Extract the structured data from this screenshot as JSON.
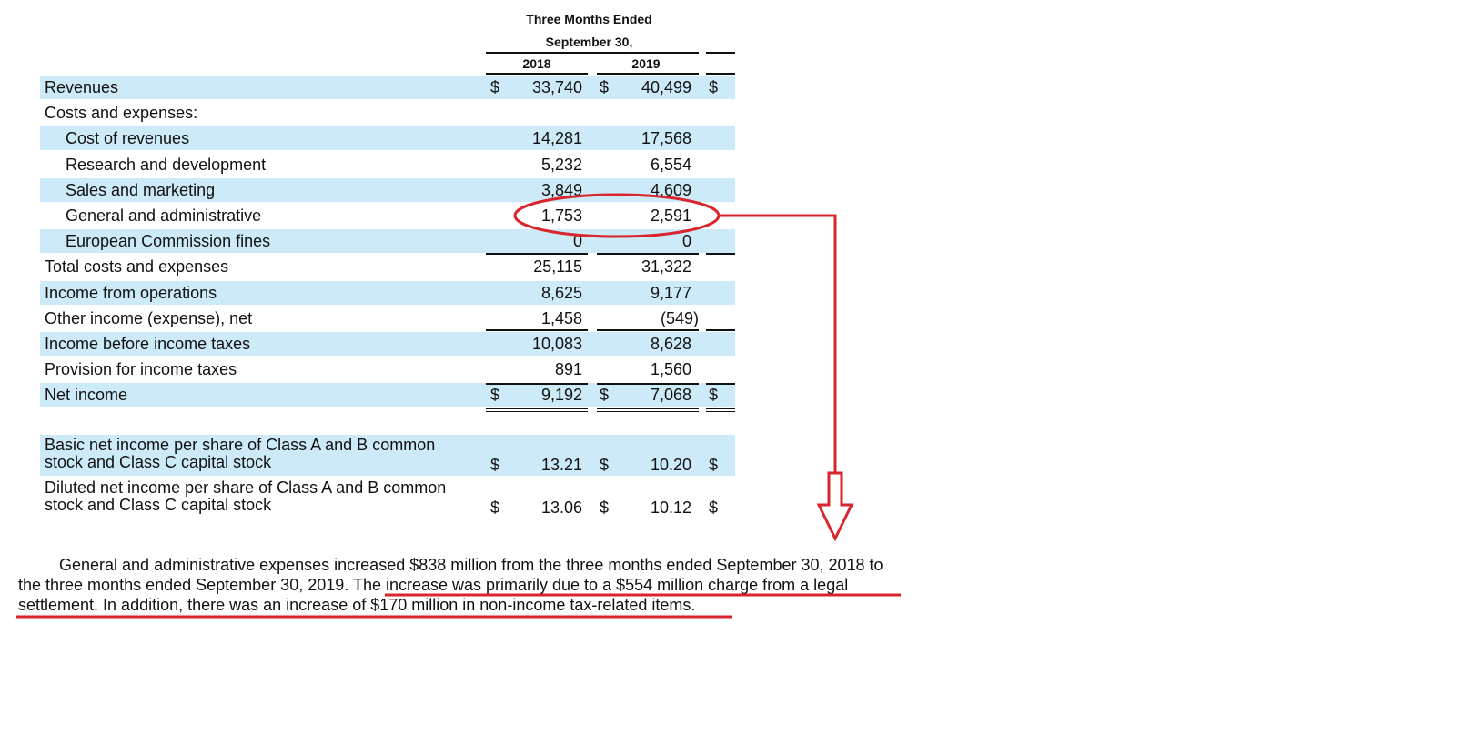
{
  "header": {
    "period_line1": "Three Months Ended",
    "period_line2": "September 30,",
    "years": [
      "2018",
      "2019"
    ]
  },
  "currency_symbol": "$",
  "rows": [
    {
      "label": "Revenues",
      "v2018": "33,740",
      "v2019": "40,499",
      "dollar": true,
      "indent": false,
      "shaded": true
    },
    {
      "label": "Costs and expenses:",
      "v2018": "",
      "v2019": "",
      "dollar": false,
      "indent": false,
      "shaded": false
    },
    {
      "label": "Cost of revenues",
      "v2018": "14,281",
      "v2019": "17,568",
      "dollar": false,
      "indent": true,
      "shaded": true
    },
    {
      "label": "Research and development",
      "v2018": "5,232",
      "v2019": "6,554",
      "dollar": false,
      "indent": true,
      "shaded": false
    },
    {
      "label": "Sales and marketing",
      "v2018": "3,849",
      "v2019": "4,609",
      "dollar": false,
      "indent": true,
      "shaded": true
    },
    {
      "label": "General and administrative",
      "v2018": "1,753",
      "v2019": "2,591",
      "dollar": false,
      "indent": true,
      "shaded": false
    },
    {
      "label": "European Commission fines",
      "v2018": "0",
      "v2019": "0",
      "dollar": false,
      "indent": true,
      "shaded": true
    },
    {
      "label": "Total costs and expenses",
      "v2018": "25,115",
      "v2019": "31,322",
      "dollar": false,
      "indent": false,
      "shaded": false
    },
    {
      "label": "Income from operations",
      "v2018": "8,625",
      "v2019": "9,177",
      "dollar": false,
      "indent": false,
      "shaded": true
    },
    {
      "label": "Other income (expense), net",
      "v2018": "1,458",
      "v2019": "(549)",
      "dollar": false,
      "indent": false,
      "shaded": false
    },
    {
      "label": "Income before income taxes",
      "v2018": "10,083",
      "v2019": "8,628",
      "dollar": false,
      "indent": false,
      "shaded": true
    },
    {
      "label": "Provision for income taxes",
      "v2018": "891",
      "v2019": "1,560",
      "dollar": false,
      "indent": false,
      "shaded": false
    },
    {
      "label": "Net income",
      "v2018": "9,192",
      "v2019": "7,068",
      "dollar": true,
      "indent": false,
      "shaded": true
    }
  ],
  "eps_rows": [
    {
      "label_line1": "Basic net income per share of Class A and B common",
      "label_line2": "stock and Class C capital stock",
      "v2018": "13.21",
      "v2019": "10.20",
      "shaded": true
    },
    {
      "label_line1": "Diluted net income per share of Class A and B common",
      "label_line2": "stock and Class C capital stock",
      "v2018": "13.06",
      "v2019": "10.12",
      "shaded": false
    }
  ],
  "narrative": {
    "sentence1": "General and administrative expenses increased $838 million from the three months ended September 30, 2018 to the three months ended September 30, 2019.",
    "sentence2": "The increase was primarily due to a $554 million charge from a legal settlement. In addition, there was an increase of $170 million in non-income tax-related items."
  },
  "annotation_color": "#d9262e",
  "band_color": "#cdeaf8"
}
